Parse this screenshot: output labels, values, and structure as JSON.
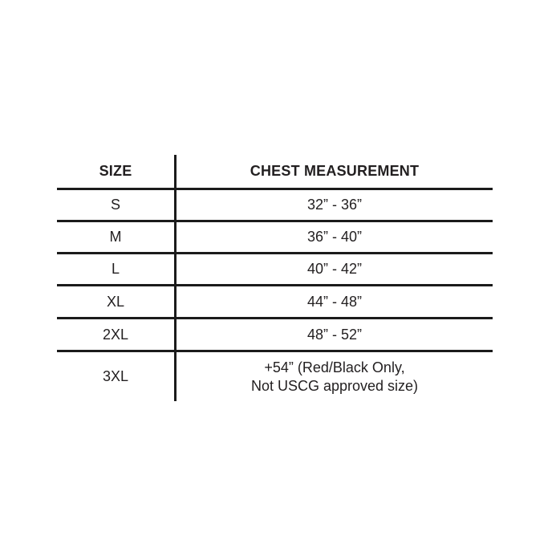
{
  "page": {
    "background": "#ffffff",
    "text_color": "#221f20",
    "line_color": "#1b1b1b"
  },
  "table": {
    "columns": [
      "SIZE",
      "CHEST MEASUREMENT"
    ],
    "rows": [
      {
        "size": "S",
        "chest": "32” - 36”"
      },
      {
        "size": "M",
        "chest": "36” - 40”"
      },
      {
        "size": "L",
        "chest": "40” - 42”"
      },
      {
        "size": "XL",
        "chest": "44” - 48”"
      },
      {
        "size": "2XL",
        "chest": "48” - 52”"
      },
      {
        "size": "3XL",
        "chest_line1": "+54” (Red/Black Only,",
        "chest_line2": "Not USCG approved size)"
      }
    ]
  },
  "chart_data": {
    "type": "table",
    "title": "",
    "columns": [
      "SIZE",
      "CHEST MEASUREMENT"
    ],
    "rows": [
      [
        "S",
        "32” - 36”"
      ],
      [
        "M",
        "36” - 40”"
      ],
      [
        "L",
        "40” - 42”"
      ],
      [
        "XL",
        "44” - 48”"
      ],
      [
        "2XL",
        "48” - 52”"
      ],
      [
        "3XL",
        "+54” (Red/Black Only, Not USCG approved size)"
      ]
    ],
    "layout": {
      "grid": "horizontal rules between all rows, single vertical divider between columns, no outer box",
      "header_style": "bold uppercase",
      "line_color": "#1b1b1b",
      "background": "#ffffff"
    }
  }
}
